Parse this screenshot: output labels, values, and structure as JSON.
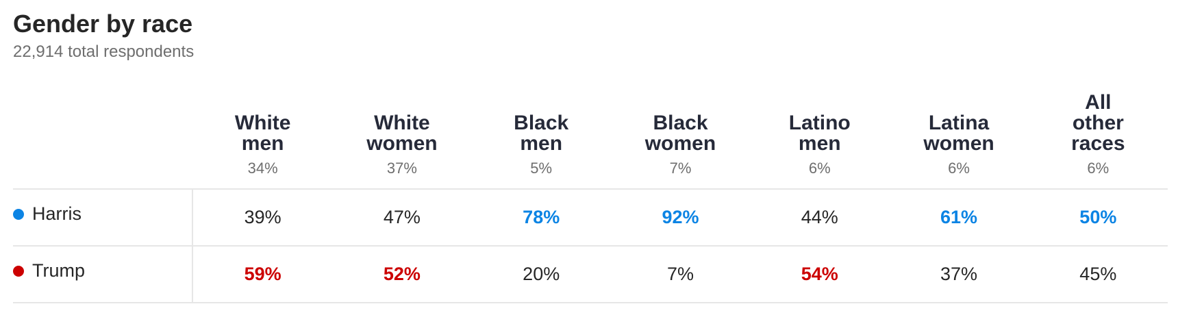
{
  "header": {
    "title": "Gender by race",
    "subtitle": "22,914 total respondents"
  },
  "table": {
    "columns": [
      {
        "name": "White men",
        "share": "34%"
      },
      {
        "name": "White women",
        "share": "37%"
      },
      {
        "name": "Black men",
        "share": "5%"
      },
      {
        "name": "Black women",
        "share": "7%"
      },
      {
        "name": "Latino men",
        "share": "6%"
      },
      {
        "name": "Latina women",
        "share": "6%"
      },
      {
        "name": "All other races",
        "share": "6%"
      }
    ],
    "rows": [
      {
        "candidate": "Harris",
        "color": "#0c84e4",
        "values": [
          "39%",
          "47%",
          "78%",
          "92%",
          "44%",
          "61%",
          "50%"
        ]
      },
      {
        "candidate": "Trump",
        "color": "#cc0000",
        "values": [
          "59%",
          "52%",
          "20%",
          "7%",
          "54%",
          "37%",
          "45%"
        ]
      }
    ]
  }
}
